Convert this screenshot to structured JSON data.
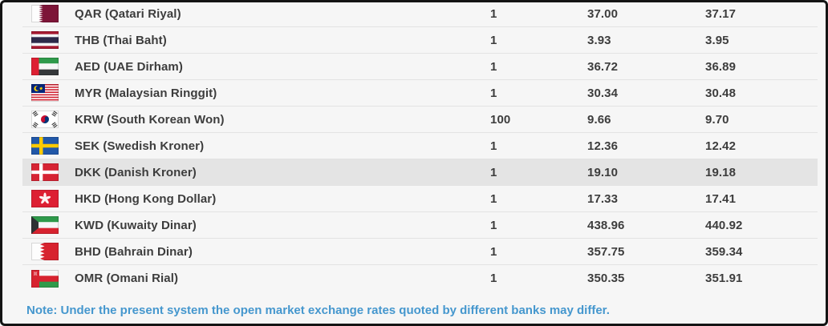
{
  "table": {
    "rows": [
      {
        "code": "QAR",
        "label": "QAR (Qatari Riyal)",
        "flag": "qa",
        "unit": "1",
        "buying": "37.00",
        "selling": "37.17",
        "highlighted": false
      },
      {
        "code": "THB",
        "label": "THB (Thai Baht)",
        "flag": "th",
        "unit": "1",
        "buying": "3.93",
        "selling": "3.95",
        "highlighted": false
      },
      {
        "code": "AED",
        "label": "AED (UAE Dirham)",
        "flag": "ae",
        "unit": "1",
        "buying": "36.72",
        "selling": "36.89",
        "highlighted": false
      },
      {
        "code": "MYR",
        "label": "MYR (Malaysian Ringgit)",
        "flag": "my",
        "unit": "1",
        "buying": "30.34",
        "selling": "30.48",
        "highlighted": false
      },
      {
        "code": "KRW",
        "label": "KRW (South Korean Won)",
        "flag": "kr",
        "unit": "100",
        "buying": "9.66",
        "selling": "9.70",
        "highlighted": false
      },
      {
        "code": "SEK",
        "label": "SEK (Swedish Kroner)",
        "flag": "se",
        "unit": "1",
        "buying": "12.36",
        "selling": "12.42",
        "highlighted": false
      },
      {
        "code": "DKK",
        "label": "DKK (Danish Kroner)",
        "flag": "dk",
        "unit": "1",
        "buying": "19.10",
        "selling": "19.18",
        "highlighted": true
      },
      {
        "code": "HKD",
        "label": "HKD (Hong Kong Dollar)",
        "flag": "hk",
        "unit": "1",
        "buying": "17.33",
        "selling": "17.41",
        "highlighted": false
      },
      {
        "code": "KWD",
        "label": "KWD (Kuwaity Dinar)",
        "flag": "kw",
        "unit": "1",
        "buying": "438.96",
        "selling": "440.92",
        "highlighted": false
      },
      {
        "code": "BHD",
        "label": "BHD (Bahrain Dinar)",
        "flag": "bh",
        "unit": "1",
        "buying": "357.75",
        "selling": "359.34",
        "highlighted": false
      },
      {
        "code": "OMR",
        "label": "OMR (Omani Rial)",
        "flag": "om",
        "unit": "1",
        "buying": "350.35",
        "selling": "351.91",
        "highlighted": false
      }
    ]
  },
  "note": "Note: Under the present system the open market exchange rates quoted by different banks may differ.",
  "colors": {
    "page_background": "#f6f6f6",
    "frame_border": "#141414",
    "row_divider": "#e3e3e3",
    "row_highlight": "#e4e4e4",
    "text": "#3d3d3d",
    "note_text": "#4597ce"
  }
}
